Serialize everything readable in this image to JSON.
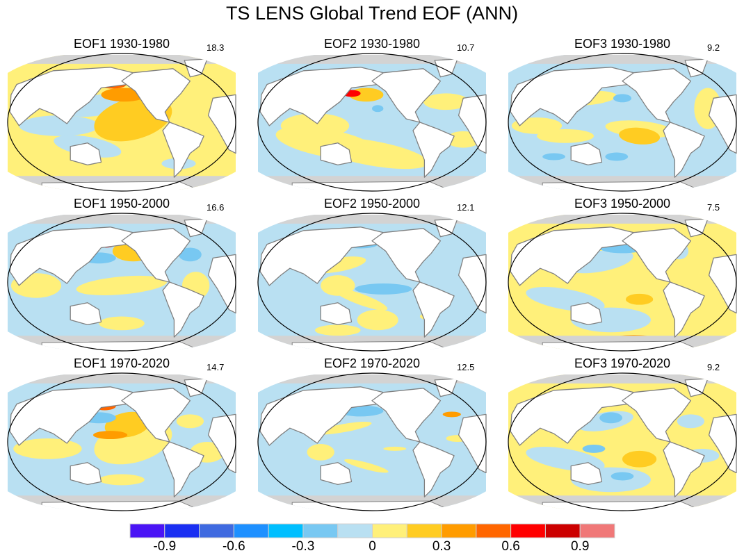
{
  "figure": {
    "title": "TS LENS Global Trend EOF (ANN)"
  },
  "chart_data": {
    "type": "heatmap",
    "title": "TS LENS Global Trend EOF (ANN)",
    "projection": "global map (Robinson-like), Pacific-centered",
    "layout": "3x3 panels (rows: periods, cols: EOF modes)",
    "panels": [
      {
        "eof": "EOF1",
        "period": "1930-1980",
        "label": "EOF1 1930-1980",
        "pct_variance": "18.3"
      },
      {
        "eof": "EOF2",
        "period": "1930-1980",
        "label": "EOF2 1930-1980",
        "pct_variance": "10.7"
      },
      {
        "eof": "EOF3",
        "period": "1930-1980",
        "label": "EOF3 1930-1980",
        "pct_variance": "9.2"
      },
      {
        "eof": "EOF1",
        "period": "1950-2000",
        "label": "EOF1 1950-2000",
        "pct_variance": "16.6"
      },
      {
        "eof": "EOF2",
        "period": "1950-2000",
        "label": "EOF2 1950-2000",
        "pct_variance": "12.1"
      },
      {
        "eof": "EOF3",
        "period": "1950-2000",
        "label": "EOF3 1950-2000",
        "pct_variance": "7.5"
      },
      {
        "eof": "EOF1",
        "period": "1970-2020",
        "label": "EOF1 1970-2020",
        "pct_variance": "14.7"
      },
      {
        "eof": "EOF2",
        "period": "1970-2020",
        "label": "EOF2 1970-2020",
        "pct_variance": "12.5"
      },
      {
        "eof": "EOF3",
        "period": "1970-2020",
        "label": "EOF3 1970-2020",
        "pct_variance": "9.2"
      }
    ],
    "colorbar": {
      "orientation": "horizontal",
      "placement": "bottom",
      "levels": [
        -0.9,
        -0.75,
        -0.6,
        -0.45,
        -0.3,
        -0.15,
        0,
        0.15,
        0.3,
        0.45,
        0.6,
        0.75,
        0.9
      ],
      "tick_labels": [
        "-0.9",
        "-0.6",
        "-0.3",
        "0",
        "0.3",
        "0.6",
        "0.9"
      ],
      "tick_values": [
        -0.9,
        -0.6,
        -0.3,
        0,
        0.3,
        0.6,
        0.9
      ],
      "colors": [
        "#4a14f5",
        "#1a2ff2",
        "#3f6ae0",
        "#1e90ff",
        "#00bfff",
        "#78c8f2",
        "#b9e0f2",
        "#fff07a",
        "#ffcc22",
        "#ff9c00",
        "#ff6600",
        "#ff0000",
        "#cc0000",
        "#f07878"
      ]
    }
  },
  "colors": {
    "land": "#ffffff",
    "ice": "#d3d3d3",
    "coast": "#808080",
    "border": "#000000"
  }
}
